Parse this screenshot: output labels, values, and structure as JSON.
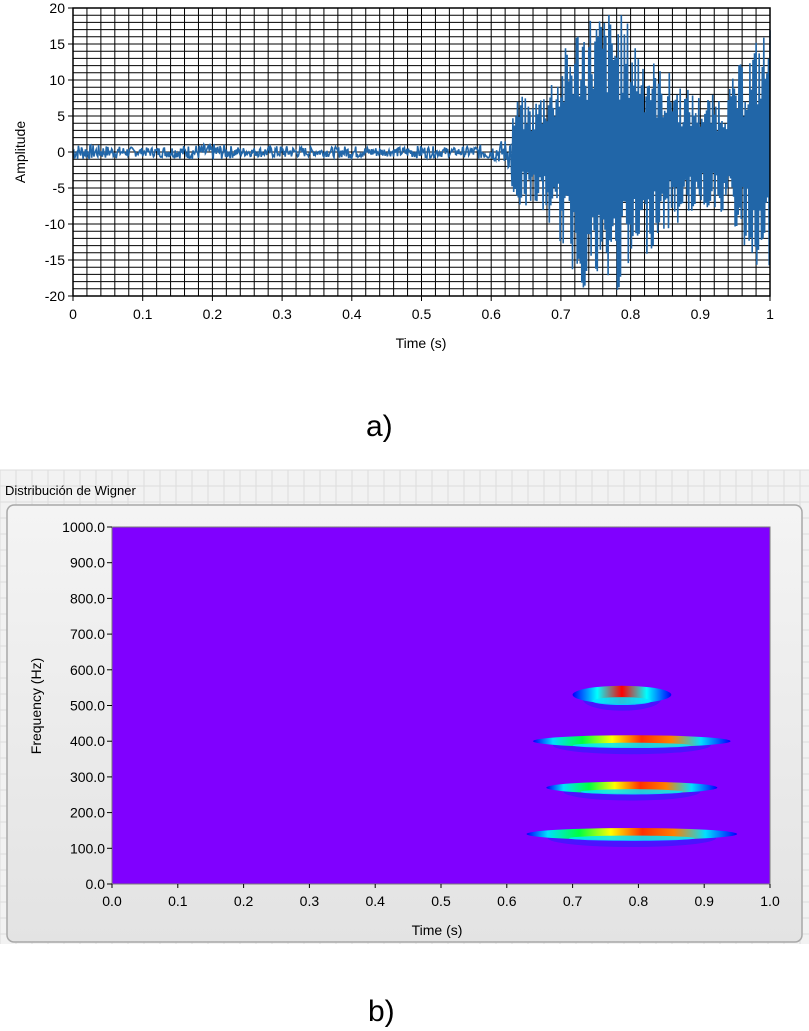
{
  "captions": {
    "a": "a)",
    "b": "b)"
  },
  "panel_title": "Distribución de Wigner",
  "colors": {
    "signal": "#2166a8",
    "grid": "#000000",
    "heatmap_background": "#8000ff",
    "panel_frame": "#d9d9d9",
    "panel_background": "#ececec"
  },
  "chart_data": [
    {
      "type": "line",
      "title": "",
      "xlabel": "Time (s)",
      "ylabel": "Amplitude",
      "xlim": [
        0,
        1
      ],
      "ylim": [
        -20,
        20
      ],
      "xticks": [
        "0",
        "0.1",
        "0.2",
        "0.3",
        "0.4",
        "0.5",
        "0.6",
        "0.7",
        "0.8",
        "0.9",
        "1"
      ],
      "yticks": [
        "20",
        "15",
        "10",
        "5",
        "0",
        "-5",
        "-10",
        "-15",
        "-20"
      ],
      "grid": true,
      "series": [
        {
          "x": [
            0,
            0.05,
            0.1,
            0.15,
            0.2,
            0.25,
            0.3,
            0.35,
            0.4,
            0.45,
            0.5,
            0.55,
            0.6,
            0.62,
            0.64,
            0.66,
            0.68,
            0.7,
            0.72,
            0.74,
            0.76,
            0.78,
            0.8,
            0.82,
            0.84,
            0.86,
            0.88,
            0.9,
            0.92,
            0.94,
            0.96,
            0.98,
            1.0
          ],
          "envelope": [
            2,
            1.5,
            1,
            1.5,
            2,
            1,
            1.5,
            1,
            1.5,
            1,
            1.5,
            1,
            2,
            3,
            8,
            7,
            10,
            13,
            18,
            20,
            20,
            20,
            18,
            15,
            12,
            11,
            9,
            8,
            8,
            9,
            13,
            16,
            18
          ]
        }
      ]
    },
    {
      "type": "heatmap",
      "title": "Distribución de Wigner",
      "xlabel": "Time (s)",
      "ylabel": "Frequency (Hz)",
      "xlim": [
        0,
        1
      ],
      "ylim": [
        0,
        1000
      ],
      "xticks": [
        "0.0",
        "0.1",
        "0.2",
        "0.3",
        "0.4",
        "0.5",
        "0.6",
        "0.7",
        "0.8",
        "0.9",
        "1.0"
      ],
      "yticks": [
        "1000.0",
        "900.0",
        "800.0",
        "700.0",
        "600.0",
        "500.0",
        "400.0",
        "300.0",
        "200.0",
        "100.0",
        "0.0"
      ],
      "components": [
        {
          "freq_hz": 530,
          "t_start": 0.7,
          "t_end": 0.85,
          "t_peak": 0.77
        },
        {
          "freq_hz": 400,
          "t_start": 0.64,
          "t_end": 0.94,
          "t_peak": 0.78
        },
        {
          "freq_hz": 270,
          "t_start": 0.66,
          "t_end": 0.92,
          "t_peak": 0.78
        },
        {
          "freq_hz": 140,
          "t_start": 0.63,
          "t_end": 0.95,
          "t_peak": 0.78
        }
      ]
    }
  ]
}
